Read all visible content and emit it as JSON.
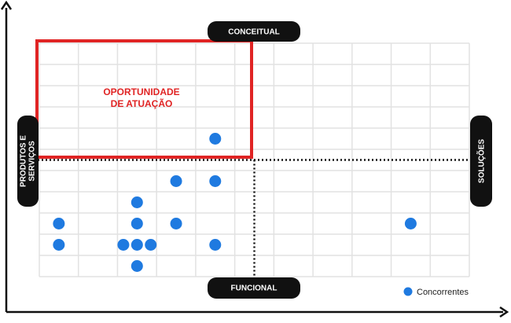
{
  "chart_data": {
    "type": "scatter",
    "series": [
      {
        "name": "Concorrentes",
        "color": "#1f7ae0",
        "x": [
          4.5,
          3.5,
          4.5,
          2.5,
          0.5,
          2.5,
          3.5,
          9.5,
          0.5,
          2.15,
          2.5,
          2.85,
          4.5,
          2.5
        ],
        "values": [
          6.5,
          4.5,
          4.5,
          3.5,
          2.5,
          2.5,
          2.5,
          2.5,
          1.5,
          1.5,
          1.5,
          1.5,
          1.5,
          0.5
        ]
      }
    ],
    "xlim": [
      0,
      11
    ],
    "ylim": [
      0,
      11
    ],
    "grid": true,
    "quadrant_labels": {
      "top": "CONCEITUAL",
      "bottom": "FUNCIONAL",
      "left": [
        "PRODUTOS E",
        "SERVIÇOS"
      ],
      "right": "SOLUÇÕES"
    },
    "annotation": [
      "OPORTUNIDADE",
      "DE ATUAÇÃO"
    ],
    "legend": "bottom-right"
  }
}
